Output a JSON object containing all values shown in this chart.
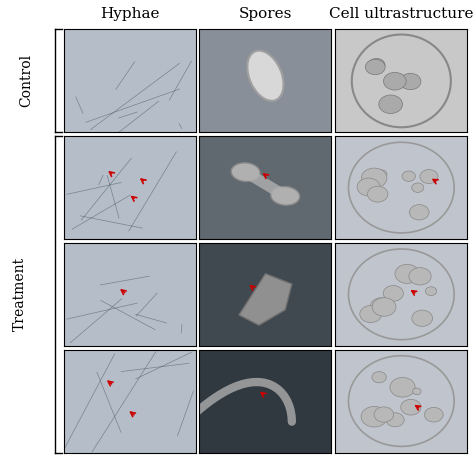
{
  "title_cols": [
    "Hyphae",
    "Spores",
    "Cell ultrastructure"
  ],
  "row_labels": [
    "Control",
    "Treatment"
  ],
  "col_header_fontsize": 11,
  "row_label_fontsize": 10,
  "background_color": "#ffffff",
  "bracket_color": "#000000",
  "arrow_color": "#cc0000",
  "grid_rows": 4,
  "grid_cols": 3,
  "cell_colors": [
    [
      "#b8bfc8",
      "#8a9099",
      "#c8c8c8"
    ],
    [
      "#b0b8c0",
      "#606870",
      "#c0c4cc"
    ],
    [
      "#b0b8c0",
      "#505860",
      "#c0c4cc"
    ],
    [
      "#b0b8c0",
      "#404850",
      "#c0c4cc"
    ]
  ],
  "arrow_specs": [
    [
      1,
      0,
      0.62,
      0.55,
      -0.06,
      0.06
    ],
    [
      1,
      0,
      0.38,
      0.62,
      -0.06,
      0.06
    ],
    [
      1,
      0,
      0.55,
      0.38,
      -0.06,
      0.06
    ],
    [
      1,
      1,
      0.52,
      0.6,
      -0.06,
      0.06
    ],
    [
      1,
      2,
      0.78,
      0.55,
      -0.07,
      0.05
    ],
    [
      2,
      0,
      0.48,
      0.5,
      -0.07,
      0.07
    ],
    [
      2,
      1,
      0.42,
      0.55,
      -0.06,
      0.06
    ],
    [
      2,
      2,
      0.62,
      0.5,
      -0.07,
      0.06
    ],
    [
      3,
      0,
      0.55,
      0.35,
      -0.07,
      0.07
    ],
    [
      3,
      0,
      0.38,
      0.65,
      -0.07,
      0.07
    ],
    [
      3,
      1,
      0.5,
      0.55,
      -0.06,
      0.06
    ],
    [
      3,
      2,
      0.65,
      0.42,
      -0.07,
      0.06
    ]
  ]
}
